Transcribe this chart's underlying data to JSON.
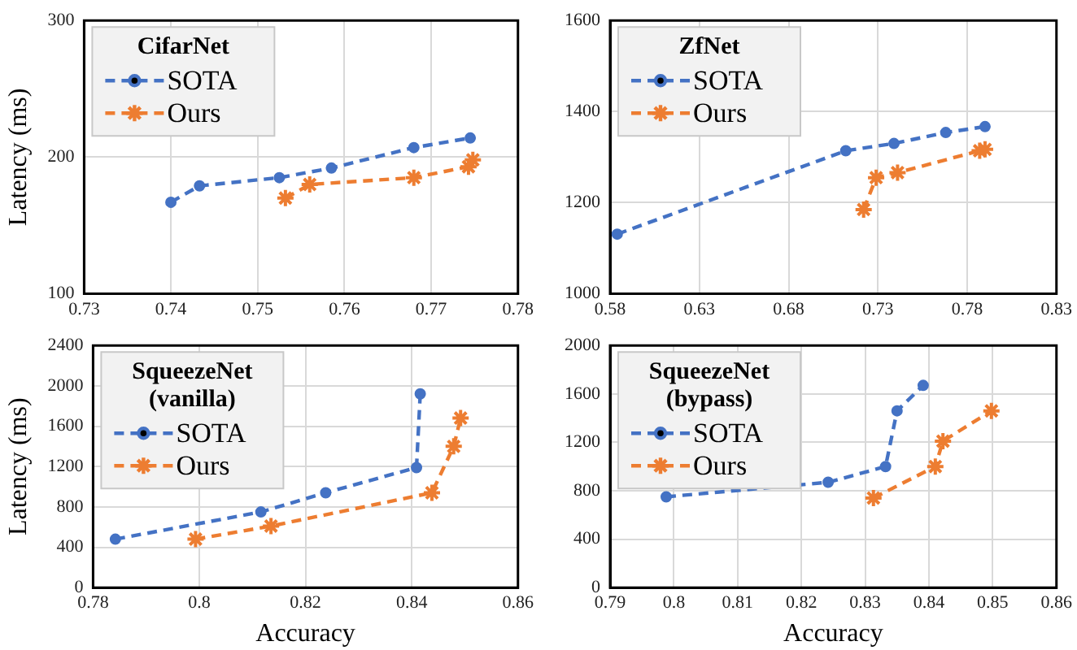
{
  "chart_data": [
    {
      "type": "line",
      "legend_title": "CifarNet",
      "ylabel": "Latency (ms)",
      "xlim": [
        0.73,
        0.78
      ],
      "xticks": [
        0.73,
        0.74,
        0.75,
        0.76,
        0.77,
        0.78
      ],
      "ylim": [
        100,
        300
      ],
      "yticks": [
        100,
        200,
        300
      ],
      "grid": true,
      "legend": "top left",
      "line_style": "dashed",
      "series": [
        {
          "name": "SOTA",
          "color": "#4472c4",
          "marker": "circle",
          "x": [
            0.74,
            0.7433,
            0.7525,
            0.7585,
            0.768,
            0.7745
          ],
          "values": [
            167,
            179,
            185,
            192,
            207,
            214
          ]
        },
        {
          "name": "Ours",
          "color": "#ed7d31",
          "marker": "cross",
          "x": [
            0.7532,
            0.756,
            0.768,
            0.7743,
            0.7748
          ],
          "values": [
            170,
            180,
            185,
            193,
            198
          ]
        }
      ]
    },
    {
      "type": "line",
      "legend_title": "ZfNet",
      "xlim": [
        0.58,
        0.83
      ],
      "xticks": [
        0.58,
        0.63,
        0.68,
        0.73,
        0.78,
        0.83
      ],
      "ylim": [
        1000,
        1600
      ],
      "yticks": [
        1000,
        1200,
        1400,
        1600
      ],
      "grid": true,
      "legend": "top left",
      "line_style": "dashed",
      "series": [
        {
          "name": "SOTA",
          "color": "#4472c4",
          "marker": "circle",
          "x": [
            0.584,
            0.712,
            0.739,
            0.768,
            0.79
          ],
          "values": [
            1131,
            1314,
            1330,
            1354,
            1367
          ]
        },
        {
          "name": "Ours",
          "color": "#ed7d31",
          "marker": "cross",
          "x": [
            0.722,
            0.729,
            0.741,
            0.787,
            0.79
          ],
          "values": [
            1185,
            1255,
            1266,
            1314,
            1317
          ]
        }
      ]
    },
    {
      "type": "line",
      "legend_title": "SqueezeNet (vanilla)",
      "xlabel": "Accuracy",
      "ylabel": "Latency (ms)",
      "xlim": [
        0.78,
        0.86
      ],
      "xticks": [
        0.78,
        0.8,
        0.82,
        0.84,
        0.86
      ],
      "ylim": [
        0,
        2400
      ],
      "yticks": [
        0,
        400,
        800,
        1200,
        1600,
        2000,
        2400
      ],
      "grid": true,
      "legend": "top left",
      "line_style": "dashed",
      "series": [
        {
          "name": "SOTA",
          "color": "#4472c4",
          "marker": "circle",
          "x": [
            0.7842,
            0.8116,
            0.8238,
            0.8409,
            0.8416
          ],
          "values": [
            480,
            750,
            940,
            1190,
            1920
          ]
        },
        {
          "name": "Ours",
          "color": "#ed7d31",
          "marker": "cross",
          "x": [
            0.7993,
            0.8135,
            0.8438,
            0.8479,
            0.8492
          ],
          "values": [
            480,
            610,
            940,
            1400,
            1680
          ]
        }
      ]
    },
    {
      "type": "line",
      "legend_title": "SqueezeNet (bypass)",
      "xlabel": "Accuracy",
      "xlim": [
        0.79,
        0.86
      ],
      "xticks": [
        0.79,
        0.8,
        0.81,
        0.82,
        0.83,
        0.84,
        0.85,
        0.86
      ],
      "ylim": [
        0,
        2000
      ],
      "yticks": [
        0,
        400,
        800,
        1200,
        1600,
        2000
      ],
      "grid": true,
      "legend": "top left",
      "line_style": "dashed",
      "series": [
        {
          "name": "SOTA",
          "color": "#4472c4",
          "marker": "circle",
          "x": [
            0.7988,
            0.8242,
            0.8332,
            0.835,
            0.8391
          ],
          "values": [
            750,
            870,
            1000,
            1460,
            1670
          ]
        },
        {
          "name": "Ours",
          "color": "#ed7d31",
          "marker": "cross",
          "x": [
            0.8313,
            0.841,
            0.8422,
            0.8498
          ],
          "values": [
            740,
            1000,
            1210,
            1460
          ]
        }
      ]
    }
  ]
}
